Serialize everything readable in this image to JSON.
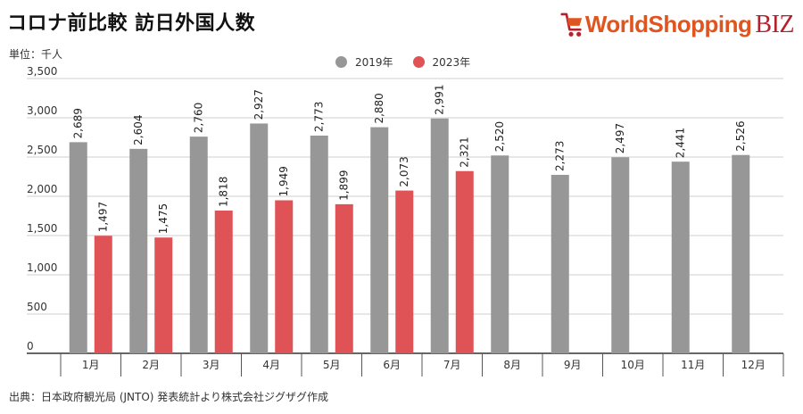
{
  "header": {
    "title": "コロナ前比較 訪日外国人数",
    "unit": "単位：千人",
    "source": "出典：日本政府観光局 (JNTO) 発表統計より株式会社ジグザグ作成"
  },
  "logo": {
    "brand": "WorldShopping",
    "suffix": "BIZ",
    "icon": "shopping-cart-icon"
  },
  "colors": {
    "series_2019": "#979797",
    "series_2023": "#df5256",
    "grid": "#cfcfcf",
    "axis": "#333333"
  },
  "chart_data": {
    "type": "bar",
    "categories": [
      "1月",
      "2月",
      "3月",
      "4月",
      "5月",
      "6月",
      "7月",
      "8月",
      "9月",
      "10月",
      "11月",
      "12月"
    ],
    "series": [
      {
        "name": "2019年",
        "values": [
          2689,
          2604,
          2760,
          2927,
          2773,
          2880,
          2991,
          2520,
          2273,
          2497,
          2441,
          2526
        ]
      },
      {
        "name": "2023年",
        "values": [
          1497,
          1475,
          1818,
          1949,
          1899,
          2073,
          2321,
          null,
          null,
          null,
          null,
          null
        ]
      }
    ],
    "yticks": [
      "0",
      "500",
      "1,000",
      "1,500",
      "2,000",
      "2,500",
      "3,000",
      "3,500"
    ],
    "ylim": [
      0,
      3500
    ],
    "grid": true,
    "legend": "top-center"
  }
}
